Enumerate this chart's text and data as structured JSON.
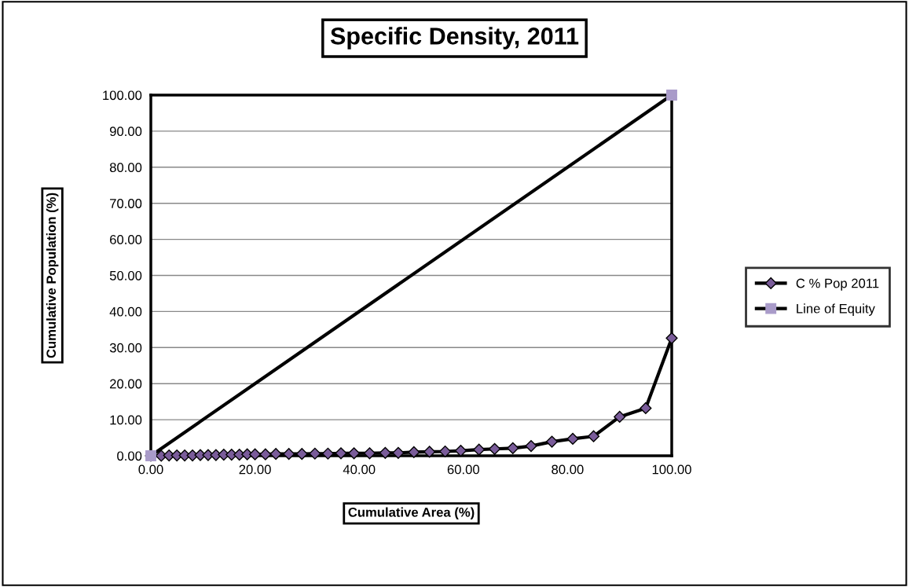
{
  "chart_data": {
    "type": "line",
    "title": "Specific Density, 2011",
    "xlabel": "Cumulative Area (%)",
    "ylabel": "Cumulative Population (%)",
    "xlim": [
      0,
      100
    ],
    "ylim": [
      0,
      100
    ],
    "xticks": [
      {
        "value": 0,
        "label": "0.00"
      },
      {
        "value": 20,
        "label": "20.00"
      },
      {
        "value": 40,
        "label": "40.00"
      },
      {
        "value": 60,
        "label": "60.00"
      },
      {
        "value": 80,
        "label": "80.00"
      },
      {
        "value": 100,
        "label": "100.00"
      }
    ],
    "yticks": [
      {
        "value": 0,
        "label": "0.00"
      },
      {
        "value": 10,
        "label": "10.00"
      },
      {
        "value": 20,
        "label": "20.00"
      },
      {
        "value": 30,
        "label": "30.00"
      },
      {
        "value": 40,
        "label": "40.00"
      },
      {
        "value": 50,
        "label": "50.00"
      },
      {
        "value": 60,
        "label": "60.00"
      },
      {
        "value": 70,
        "label": "70.00"
      },
      {
        "value": 80,
        "label": "80.00"
      },
      {
        "value": 90,
        "label": "90.00"
      },
      {
        "value": 100,
        "label": "100.00"
      }
    ],
    "grid": "y",
    "legend": "right",
    "series": [
      {
        "name": "C % Pop 2011",
        "color": "#7a5c9a",
        "marker": "diamond",
        "x": [
          0,
          2,
          3.5,
          5,
          6.5,
          8,
          9.5,
          11,
          12.5,
          14,
          15.5,
          17,
          18.5,
          20,
          22,
          24,
          26.5,
          29,
          31.5,
          34,
          36.5,
          39,
          42,
          45,
          47.5,
          50.5,
          53.5,
          56.5,
          59.5,
          63,
          66,
          69.5,
          73,
          77,
          81,
          85,
          90,
          95,
          100
        ],
        "values": [
          0,
          0,
          0.1,
          0.1,
          0.1,
          0.1,
          0.2,
          0.2,
          0.2,
          0.3,
          0.3,
          0.3,
          0.4,
          0.4,
          0.4,
          0.5,
          0.5,
          0.5,
          0.6,
          0.6,
          0.7,
          0.7,
          0.7,
          0.8,
          0.8,
          1.0,
          1.1,
          1.2,
          1.4,
          1.7,
          1.9,
          2.1,
          2.7,
          3.9,
          4.7,
          5.4,
          10.8,
          13.2,
          32.6
        ]
      },
      {
        "name": "Line of Equity",
        "color": "#a99bc9",
        "marker": "square",
        "x": [
          0,
          100
        ],
        "values": [
          0,
          100
        ]
      }
    ]
  }
}
